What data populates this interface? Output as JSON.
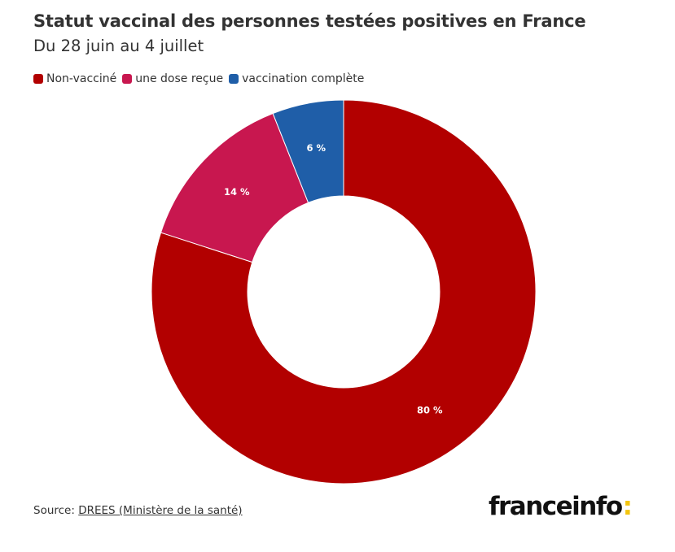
{
  "header": {
    "title": "Statut vaccinal des personnes testées positives en France",
    "subtitle": "Du 28 juin au 4 juillet"
  },
  "chart_data": {
    "type": "pie",
    "donut": true,
    "categories": [
      "Non-vacciné",
      "une dose reçue",
      "vaccination complète"
    ],
    "values": [
      80,
      14,
      6
    ],
    "labels": [
      "80 %",
      "14 %",
      "6 %"
    ],
    "colors": [
      "#b20000",
      "#c8174f",
      "#1f5ea8"
    ],
    "legend_position": "top-left"
  },
  "footer": {
    "source_prefix": "Source: ",
    "source_link": "DREES (Ministère de la santé)",
    "logo_text": "franceinfo",
    "logo_colon": ":"
  }
}
